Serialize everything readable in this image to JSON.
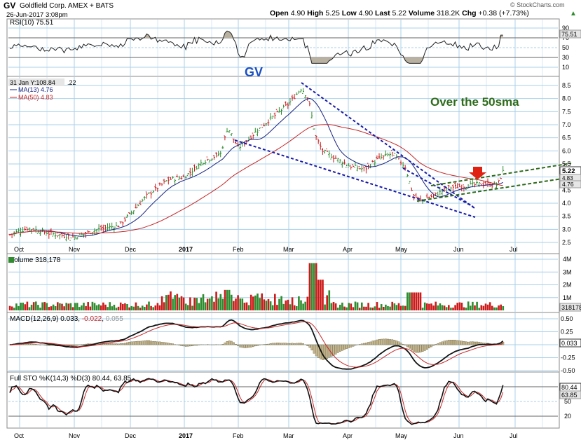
{
  "header": {
    "symbol": "GV",
    "company": "Goldfield Corp.  AMEX + BATS",
    "date": "26-Jun-2017 3:08pm",
    "open_label": "Open",
    "open": "4.90",
    "high_label": "High",
    "high": "5.25",
    "low_label": "Low",
    "low": "4.90",
    "last_label": "Last",
    "last": "5.22",
    "volume_label": "Volume",
    "volume": "318.2K",
    "chg_label": "Chg",
    "chg": "+0.38 (+7.73%)",
    "up_arrow": "▲",
    "watermark": "© StockCharts.com"
  },
  "colors": {
    "bull": "#2e8b2e",
    "bear": "#cc1a1a",
    "ma13": "#1a237e",
    "ma50": "#c62828",
    "trend": "#1a1aa8",
    "channel": "#2e6b1a",
    "grid": "#a8d0e8",
    "panel_bg": "#ffffff",
    "tag_bg": "#e6e6e6"
  },
  "price_panel": {
    "info_label": "31 Jan Y:108.84",
    "info_extra": ".22",
    "ma13_label": "MA(13) 4.76",
    "ma50_label": "MA(50) 4.83",
    "ticker_annotation": "GV",
    "annotation": "Over the 50sma",
    "last_price_tag": "5.22",
    "ma_tag_1": "4.83",
    "ma_tag_2": "4.76",
    "y_ticks": [
      "8.5",
      "8.0",
      "7.5",
      "7.0",
      "6.5",
      "6.0",
      "5.5",
      "5.0",
      "4.5",
      "4.0",
      "3.5",
      "3.0",
      "2.5"
    ],
    "x_ticks": [
      "Oct",
      "Nov",
      "Dec",
      "2017",
      "Feb",
      "Mar",
      "Apr",
      "May",
      "Jun",
      "Jul"
    ],
    "marker_icon": "red-down-arrow"
  },
  "rsi_panel": {
    "label": "RSI(10) 75.51",
    "y_ticks": [
      "90",
      "70",
      "50",
      "30",
      "10"
    ],
    "tag": "75.51"
  },
  "volume_panel": {
    "label": "Volume 318,178",
    "y_ticks": [
      "4M",
      "3M",
      "2M",
      "1M"
    ],
    "tag": "318178"
  },
  "macd_panel": {
    "label_prefix": "MACD(12,26,9)",
    "macd": "0.033",
    "signal": "-0.022",
    "hist": "0.055",
    "y_ticks": [
      "0.50",
      "0.25",
      "0.00",
      "-0.25",
      "-0.50"
    ],
    "tag": "0.033"
  },
  "sto_panel": {
    "label": "Full STO %K(14,3) %D(3) 80.44, 63.85",
    "y_ticks": [
      "80",
      "50",
      "20"
    ],
    "tag_k": "80.44",
    "tag_d": "63.85",
    "x_ticks": [
      "Oct",
      "Nov",
      "Dec",
      "2017",
      "Feb",
      "Mar",
      "Apr",
      "May",
      "Jun",
      "Jul"
    ]
  },
  "chart_data": {
    "type": "line",
    "title": "GV Goldfield Corp. AMEX + BATS",
    "x_months": [
      "Oct",
      "Nov",
      "Dec",
      "2017",
      "Feb",
      "Mar",
      "Apr",
      "May",
      "Jun",
      "Jul"
    ],
    "price_anchors": {
      "x": [
        "Oct",
        "Nov",
        "Dec",
        "Jan",
        "Feb",
        "Mar",
        "Apr",
        "May",
        "Jun",
        "26-Jun"
      ],
      "close": [
        2.85,
        2.75,
        3.2,
        4.9,
        6.1,
        8.0,
        5.2,
        5.6,
        4.4,
        5.22
      ]
    },
    "price_ylim": [
      2.5,
      8.75
    ],
    "series": [
      {
        "name": "GV",
        "kind": "ohlc"
      },
      {
        "name": "MA(13)",
        "last": 4.76
      },
      {
        "name": "MA(50)",
        "last": 4.83
      }
    ],
    "rsi_last": 75.51,
    "volume_last": 318178,
    "macd_last": {
      "macd": 0.033,
      "signal": -0.022,
      "histogram": 0.055
    },
    "sto_last": {
      "k": 80.44,
      "d": 63.85
    }
  }
}
